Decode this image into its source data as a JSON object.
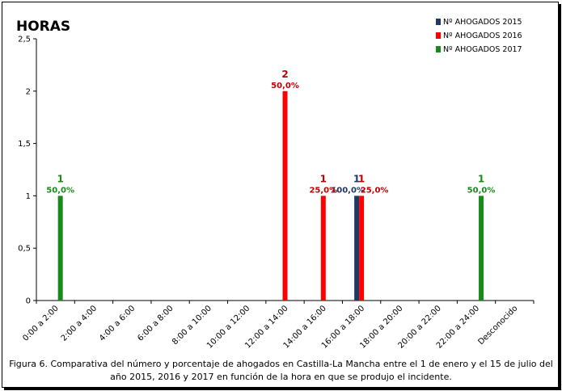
{
  "chart_data": {
    "type": "bar",
    "title": "HORAS",
    "categories": [
      "0:00 a 2:00",
      "2:00 a 4:00",
      "4:00 a 6:00",
      "6:00 a 8:00",
      "8:00 a 10:00",
      "10:00 a 12:00",
      "12:00 a 14:00",
      "14:00 a 16:00",
      "16:00 a 18:00",
      "18:00 a 20:00",
      "20:00 a 22:00",
      "22:00 a 24:00",
      "Desconocido"
    ],
    "ylim": [
      0,
      2.5
    ],
    "yticks": [
      "0",
      "0,5",
      "1",
      "1,5",
      "2",
      "2,5"
    ],
    "grid": false,
    "legend_position": "top-right",
    "series": [
      {
        "name": "Nº AHOGADOS 2015",
        "color": "#1f3864",
        "values": [
          0,
          0,
          0,
          0,
          0,
          0,
          0,
          0,
          1,
          0,
          0,
          0,
          0
        ],
        "labels": [
          "",
          "",
          "",
          "",
          "",
          "",
          "",
          "",
          "100,0%",
          "",
          "",
          "",
          ""
        ]
      },
      {
        "name": "Nº AHOGADOS 2016",
        "color": "#ff0000",
        "values": [
          0,
          0,
          0,
          0,
          0,
          0,
          2,
          1,
          1,
          0,
          0,
          0,
          0
        ],
        "labels": [
          "",
          "",
          "",
          "",
          "",
          "",
          "50,0%",
          "25,0%",
          "25,0%",
          "",
          "",
          "",
          ""
        ]
      },
      {
        "name": "Nº AHOGADOS 2017",
        "color": "#1a8a1a",
        "values": [
          1,
          0,
          0,
          0,
          0,
          0,
          0,
          0,
          0,
          0,
          0,
          1,
          0
        ],
        "labels": [
          "50,0%",
          "",
          "",
          "",
          "",
          "",
          "",
          "",
          "",
          "",
          "",
          "50,0%",
          ""
        ]
      }
    ],
    "label_colors": {
      "Nº AHOGADOS 2015": "#1f3864",
      "Nº AHOGADOS 2016": "#c00000",
      "Nº AHOGADOS 2017": "#1a8a1a"
    }
  },
  "caption": "Figura 6. Comparativa del número y porcentaje de ahogados en Castilla-La Mancha entre el 1 de enero y el 15 de julio del año 2015, 2016 y 2017 en función de la hora en que se produjo el incidente."
}
